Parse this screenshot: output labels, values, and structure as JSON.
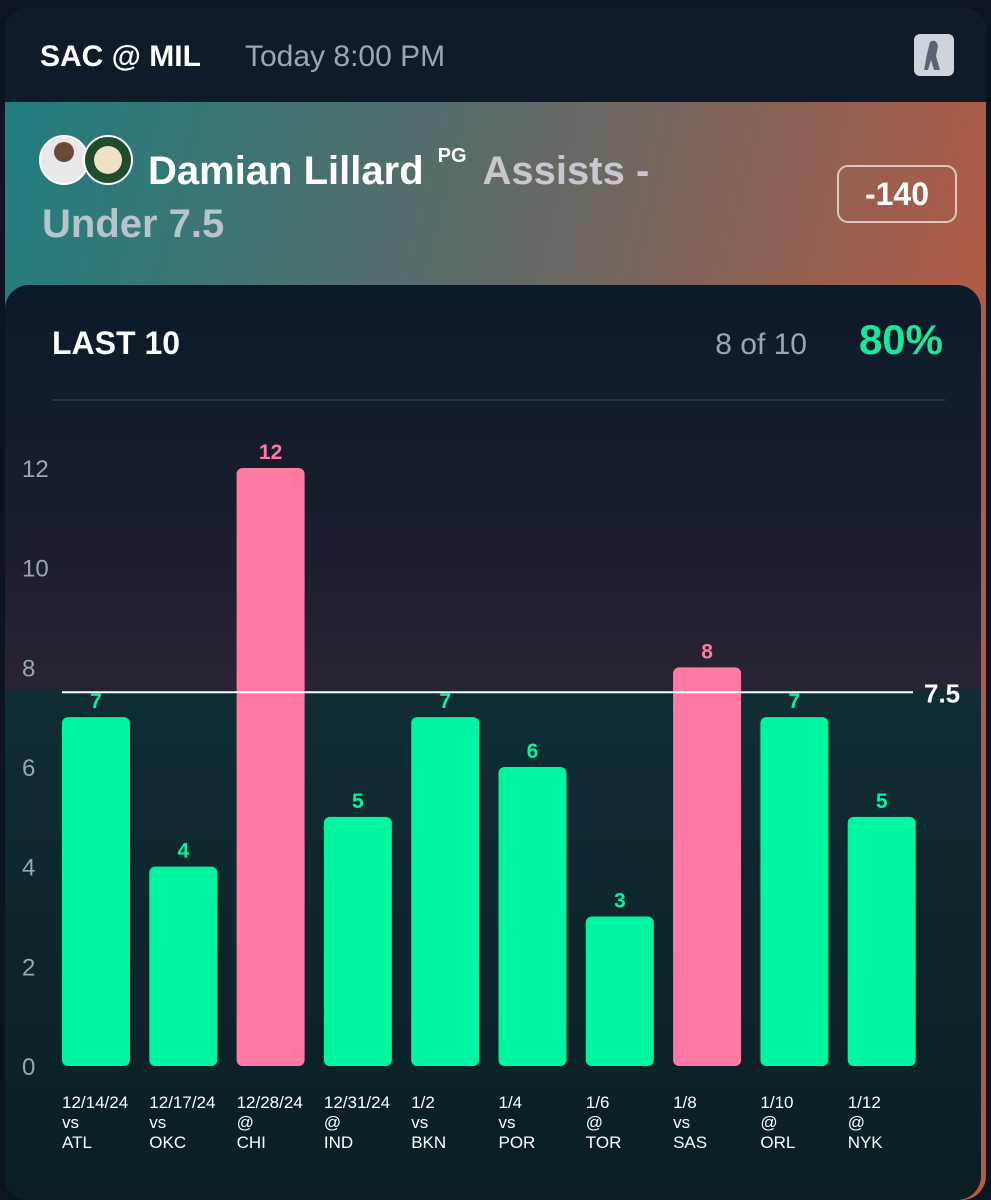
{
  "header": {
    "matchup": "SAC @ MIL",
    "time": "Today 8:00 PM"
  },
  "prop": {
    "player": "Damian Lillard",
    "position": "PG",
    "market": "Assists -",
    "line": "Under 7.5",
    "odds": "-140"
  },
  "chart_data": {
    "type": "bar",
    "title": "LAST 10",
    "record": "8 of 10",
    "hit_rate": "80%",
    "categories": [
      "12/14/24",
      "12/17/24",
      "12/28/24",
      "12/31/24",
      "1/2",
      "1/4",
      "1/6",
      "1/8",
      "1/10",
      "1/12"
    ],
    "venues": [
      "vs",
      "vs",
      "@",
      "@",
      "vs",
      "vs",
      "@",
      "vs",
      "@",
      "@"
    ],
    "opponents": [
      "ATL",
      "OKC",
      "CHI",
      "IND",
      "BKN",
      "POR",
      "TOR",
      "SAS",
      "ORL",
      "NYK"
    ],
    "values": [
      7,
      4,
      12,
      5,
      7,
      6,
      3,
      8,
      7,
      5
    ],
    "colors": [
      "#00f5a0",
      "#00f5a0",
      "#ff7ba3",
      "#00f5a0",
      "#00f5a0",
      "#00f5a0",
      "#00f5a0",
      "#ff7ba3",
      "#00f5a0",
      "#00f5a0"
    ],
    "threshold": 7.5,
    "ylim": [
      0,
      12
    ],
    "yticks": [
      0,
      2,
      4,
      6,
      8,
      10,
      12
    ],
    "grid": false
  }
}
